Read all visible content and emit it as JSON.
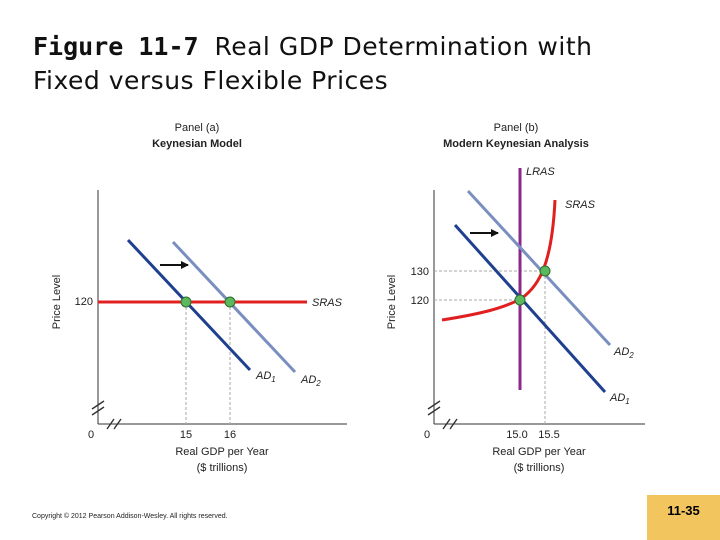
{
  "slide": {
    "title_number": "Figure 11-7",
    "title_text_line1": "Real GDP Determination with",
    "title_text_line2": "Fixed versus Flexible Prices",
    "copyright": "Copyright © 2012 Pearson Addison-Wesley. All rights reserved.",
    "slide_number": "11-35"
  },
  "panel_a": {
    "panel_label": "Panel (a)",
    "panel_title": "Keynesian Model",
    "y_axis_label": "Price Level",
    "x_axis_label_line1": "Real GDP per Year",
    "x_axis_label_line2": "($ trillions)",
    "origin": "0",
    "y_tick_120": "120",
    "x_tick_15": "15",
    "x_tick_16": "16",
    "sras_label": "SRAS",
    "ad1_label": "AD",
    "ad1_sub": "1",
    "ad2_label": "AD",
    "ad2_sub": "2"
  },
  "panel_b": {
    "panel_label": "Panel (b)",
    "panel_title": "Modern Keynesian Analysis",
    "y_axis_label": "Price Level",
    "x_axis_label_line1": "Real GDP per Year",
    "x_axis_label_line2": "($ trillions)",
    "origin": "0",
    "y_tick_130": "130",
    "y_tick_120": "120",
    "x_tick_150": "15.0",
    "x_tick_155": "15.5",
    "lras_label": "LRAS",
    "sras_label": "SRAS",
    "ad1_label": "AD",
    "ad1_sub": "1",
    "ad2_label": "AD",
    "ad2_sub": "2"
  },
  "colors": {
    "ad1": "#1f3f8f",
    "ad2": "#7a8fbf",
    "sras": "#e02020",
    "lras": "#8a2a8a",
    "equilibrium": "#5cb85c",
    "slide_number_bg": "#f2c55f"
  }
}
